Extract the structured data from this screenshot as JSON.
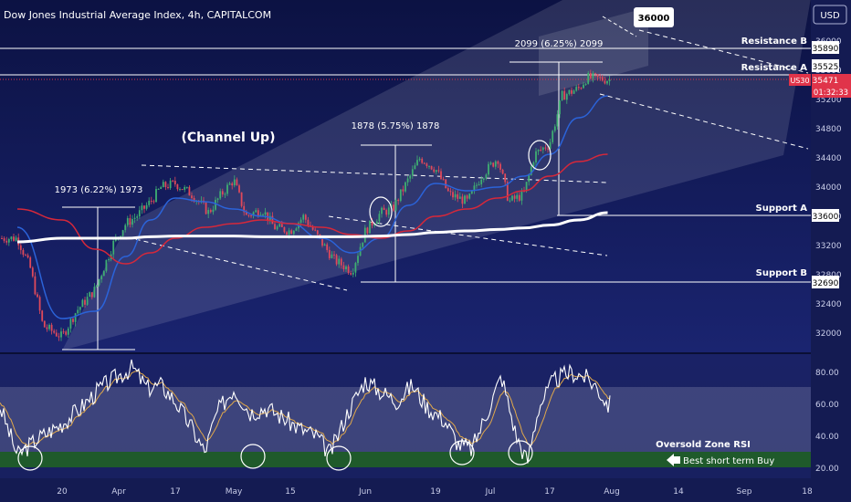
{
  "header": {
    "title": "Dow Jones Industrial Average Index, 4h, CAPITALCOM",
    "currency_button": "USD"
  },
  "price_axis": {
    "ticks": [
      "36000",
      "35600",
      "35200",
      "34800",
      "34400",
      "34000",
      "33600",
      "33200",
      "32800",
      "32400",
      "32000"
    ],
    "badges": {
      "resistance_b": "35890",
      "resistance_a": "35525",
      "symbol": "US30",
      "last_price": "35471",
      "countdown": "01:32:33",
      "support_a": "33600",
      "support_b": "32690"
    }
  },
  "rsi_axis": {
    "ticks": [
      "80.00",
      "60.00",
      "40.00",
      "20.00"
    ]
  },
  "time_axis": {
    "labels": [
      "20",
      "Apr",
      "17",
      "May",
      "15",
      "Jun",
      "19",
      "Jul",
      "17",
      "Aug",
      "14",
      "Sep",
      "18"
    ]
  },
  "annotations": {
    "target": "36000",
    "resistance_b": "Resistance B",
    "resistance_a": "Resistance A",
    "support_a": "Support A",
    "support_b": "Support B",
    "channel": "(Channel Up)",
    "move1": "1973 (6.22%) 1973",
    "move2": "1878 (5.75%) 1878",
    "move3": "2099 (6.25%) 2099",
    "oversold": "Oversold Zone RSI",
    "best_buy": "Best short term Buy"
  },
  "colors": {
    "background": "#0f1646",
    "candle_up": "#3fae72",
    "candle_down": "#e0495a",
    "ma_fast": "#2b63d9",
    "ma_mid": "#d6283a",
    "ma_slow": "#ffffff",
    "rsi": "#ffffff",
    "rsi_signal": "#e0a84a",
    "oversold_zone": "#1f5a2b",
    "price_badge": "#e0344a"
  },
  "chart_data": [
    {
      "type": "candlestick",
      "symbol": "US30",
      "timeframe": "4h",
      "ylim": [
        31800,
        36200
      ],
      "last_price": 35471,
      "levels": {
        "resistance_b": 35890,
        "resistance_a": 35525,
        "support_a": 33600,
        "support_b": 32690,
        "target": 36000
      },
      "measured_moves": [
        {
          "points": 1973,
          "percent": 6.22
        },
        {
          "points": 1878,
          "percent": 5.75
        },
        {
          "points": 2099,
          "percent": 6.25
        }
      ],
      "close_path": [
        [
          "Mar 13",
          33300
        ],
        [
          "Mar 15",
          32900
        ],
        [
          "Mar 17",
          32100
        ],
        [
          "Mar 20",
          31950
        ],
        [
          "Mar 23",
          32300
        ],
        [
          "Mar 27",
          32600
        ],
        [
          "Mar 31",
          33250
        ],
        [
          "Apr 3",
          33500
        ],
        [
          "Apr 6",
          33600
        ],
        [
          "Apr 10",
          33800
        ],
        [
          "Apr 13",
          34000
        ],
        [
          "Apr 17",
          34050
        ],
        [
          "Apr 21",
          33900
        ],
        [
          "Apr 25",
          33650
        ],
        [
          "Apr 28",
          33900
        ],
        [
          "May 1",
          34100
        ],
        [
          "May 4",
          33600
        ],
        [
          "May 8",
          33700
        ],
        [
          "May 11",
          33450
        ],
        [
          "May 15",
          33400
        ],
        [
          "May 18",
          33600
        ],
        [
          "May 22",
          33250
        ],
        [
          "May 25",
          33000
        ],
        [
          "May 29",
          32850
        ],
        [
          "Jun 1",
          33400
        ],
        [
          "Jun 5",
          33650
        ],
        [
          "Jun 8",
          33700
        ],
        [
          "Jun 12",
          34100
        ],
        [
          "Jun 15",
          34400
        ],
        [
          "Jun 19",
          34250
        ],
        [
          "Jun 22",
          33900
        ],
        [
          "Jun 26",
          33800
        ],
        [
          "Jun 29",
          34150
        ],
        [
          "Jul 3",
          34400
        ],
        [
          "Jul 6",
          33800
        ],
        [
          "Jul 10",
          33900
        ],
        [
          "Jul 13",
          34450
        ],
        [
          "Jul 17",
          34600
        ],
        [
          "Jul 20",
          35250
        ],
        [
          "Jul 24",
          35350
        ],
        [
          "Jul 26",
          35500
        ],
        [
          "Jul 31",
          35471
        ]
      ],
      "moving_averages": [
        {
          "name": "fast",
          "points": [
            [
              "Mar 13",
              33450
            ],
            [
              "Mar 20",
              32200
            ],
            [
              "Mar 27",
              32300
            ],
            [
              "Apr 3",
              33050
            ],
            [
              "Apr 10",
              33550
            ],
            [
              "Apr 17",
              33850
            ],
            [
              "Apr 24",
              33800
            ],
            [
              "May 1",
              33700
            ],
            [
              "May 8",
              33600
            ],
            [
              "May 15",
              33500
            ],
            [
              "May 22",
              33300
            ],
            [
              "May 29",
              33100
            ],
            [
              "Jun 5",
              33300
            ],
            [
              "Jun 12",
              33750
            ],
            [
              "Jun 19",
              34050
            ],
            [
              "Jun 26",
              33950
            ],
            [
              "Jul 3",
              34000
            ],
            [
              "Jul 10",
              34150
            ],
            [
              "Jul 17",
              34450
            ],
            [
              "Jul 24",
              34950
            ],
            [
              "Jul 31",
              35250
            ]
          ]
        },
        {
          "name": "mid",
          "points": [
            [
              "Mar 13",
              33700
            ],
            [
              "Mar 20",
              33550
            ],
            [
              "Mar 27",
              33150
            ],
            [
              "Apr 3",
              32950
            ],
            [
              "Apr 10",
              33100
            ],
            [
              "Apr 17",
              33300
            ],
            [
              "Apr 24",
              33450
            ],
            [
              "May 1",
              33500
            ],
            [
              "May 8",
              33550
            ],
            [
              "May 15",
              33500
            ],
            [
              "May 22",
              33450
            ],
            [
              "May 29",
              33350
            ],
            [
              "Jun 5",
              33300
            ],
            [
              "Jun 12",
              33400
            ],
            [
              "Jun 19",
              33600
            ],
            [
              "Jun 26",
              33700
            ],
            [
              "Jul 3",
              33850
            ],
            [
              "Jul 10",
              33950
            ],
            [
              "Jul 17",
              34150
            ],
            [
              "Jul 24",
              34350
            ],
            [
              "Jul 31",
              34450
            ]
          ]
        },
        {
          "name": "slow",
          "points": [
            [
              "Mar 13",
              33250
            ],
            [
              "Mar 20",
              33300
            ],
            [
              "Mar 27",
              33300
            ],
            [
              "Apr 3",
              33300
            ],
            [
              "Apr 10",
              33320
            ],
            [
              "Apr 17",
              33330
            ],
            [
              "Apr 24",
              33330
            ],
            [
              "May 1",
              33330
            ],
            [
              "May 8",
              33320
            ],
            [
              "May 15",
              33320
            ],
            [
              "May 22",
              33320
            ],
            [
              "May 29",
              33320
            ],
            [
              "Jun 5",
              33330
            ],
            [
              "Jun 12",
              33350
            ],
            [
              "Jun 19",
              33380
            ],
            [
              "Jun 26",
              33400
            ],
            [
              "Jul 3",
              33420
            ],
            [
              "Jul 10",
              33440
            ],
            [
              "Jul 17",
              33480
            ],
            [
              "Jul 24",
              33550
            ],
            [
              "Jul 31",
              33650
            ]
          ]
        }
      ]
    },
    {
      "type": "line",
      "name": "RSI",
      "ylim": [
        10,
        90
      ],
      "oversold_zone": [
        25,
        30
      ],
      "oversold_touches": [
        "Mar 13",
        "Apr 24",
        "May 24",
        "Jun 27",
        "Jul 11"
      ],
      "rsi_path": [
        [
          "Mar 10",
          62
        ],
        [
          "Mar 13",
          28
        ],
        [
          "Mar 16",
          38
        ],
        [
          "Mar 20",
          48
        ],
        [
          "Mar 24",
          58
        ],
        [
          "Mar 28",
          70
        ],
        [
          "Apr 1",
          78
        ],
        [
          "Apr 5",
          83
        ],
        [
          "Apr 9",
          70
        ],
        [
          "Apr 13",
          72
        ],
        [
          "Apr 17",
          62
        ],
        [
          "Apr 21",
          45
        ],
        [
          "Apr 24",
          30
        ],
        [
          "Apr 27",
          55
        ],
        [
          "May 1",
          70
        ],
        [
          "May 5",
          55
        ],
        [
          "May 9",
          58
        ],
        [
          "May 13",
          52
        ],
        [
          "May 17",
          45
        ],
        [
          "May 21",
          40
        ],
        [
          "May 24",
          29
        ],
        [
          "May 28",
          55
        ],
        [
          "Jun 1",
          75
        ],
        [
          "Jun 5",
          68
        ],
        [
          "Jun 9",
          62
        ],
        [
          "Jun 13",
          72
        ],
        [
          "Jun 17",
          58
        ],
        [
          "Jun 21",
          50
        ],
        [
          "Jun 24",
          35
        ],
        [
          "Jun 27",
          32
        ],
        [
          "Jul 1",
          60
        ],
        [
          "Jul 4",
          78
        ],
        [
          "Jul 8",
          40
        ],
        [
          "Jul 11",
          24
        ],
        [
          "Jul 14",
          58
        ],
        [
          "Jul 18",
          75
        ],
        [
          "Jul 22",
          80
        ],
        [
          "Jul 25",
          78
        ],
        [
          "Jul 28",
          72
        ],
        [
          "Jul 31",
          60
        ]
      ]
    }
  ]
}
